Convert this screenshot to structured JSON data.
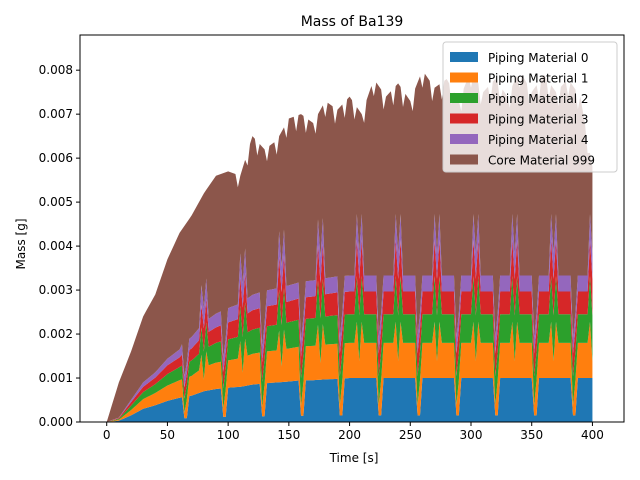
{
  "chart_data": {
    "type": "area",
    "stacked": true,
    "title": "Mass of Ba139",
    "xlabel": "Time [s]",
    "ylabel": "Mass [g]",
    "xlim": [
      -22,
      426
    ],
    "ylim": [
      0,
      0.0088
    ],
    "xticks": [
      0,
      50,
      100,
      150,
      200,
      250,
      300,
      350,
      400
    ],
    "yticks": [
      0.0,
      0.001,
      0.002,
      0.003,
      0.004,
      0.005,
      0.006,
      0.007,
      0.008
    ],
    "ytick_labels": [
      "0.000",
      "0.001",
      "0.002",
      "0.003",
      "0.004",
      "0.005",
      "0.006",
      "0.007",
      "0.008"
    ],
    "legend_position": "top-right",
    "grid": false,
    "series": [
      {
        "name": "Piping Material 0",
        "color": "#1f77b4"
      },
      {
        "name": "Piping Material 1",
        "color": "#ff7f0e"
      },
      {
        "name": "Piping Material 2",
        "color": "#2ca02c"
      },
      {
        "name": "Piping Material 3",
        "color": "#d62728"
      },
      {
        "name": "Piping Material 4",
        "color": "#9467bd"
      },
      {
        "name": "Core Material 999",
        "color": "#8c564b"
      }
    ],
    "x": [
      0,
      10,
      20,
      30,
      40,
      50,
      60,
      70,
      80,
      90,
      100,
      110,
      120,
      130,
      140,
      150,
      160,
      170,
      180,
      190,
      200,
      210,
      220,
      230,
      240,
      250,
      260,
      270,
      280,
      290,
      300,
      310,
      320,
      330,
      340,
      350,
      360,
      370,
      380,
      390,
      400
    ],
    "totals": [
      0.0,
      0.0009,
      0.0016,
      0.0024,
      0.0029,
      0.0037,
      0.0043,
      0.0047,
      0.0052,
      0.0056,
      0.0057,
      0.0056,
      0.0065,
      0.0062,
      0.0064,
      0.0069,
      0.007,
      0.0068,
      0.0073,
      0.0071,
      0.0074,
      0.007,
      0.0078,
      0.0074,
      0.0077,
      0.0073,
      0.008,
      0.0076,
      0.0078,
      0.0073,
      0.008,
      0.0075,
      0.0078,
      0.0074,
      0.008,
      0.0075,
      0.0079,
      0.0075,
      0.0078,
      0.0074,
      0.0058
    ],
    "layers_baseline": [
      [
        0,
        3e-05,
        0.00015,
        0.0003,
        0.00038,
        0.00048,
        0.00055,
        0.0006,
        0.0007,
        0.00075,
        0.00078,
        0.0008,
        0.00085,
        0.00088,
        0.0009,
        0.00092,
        0.00095,
        0.00095,
        0.00097,
        0.00098,
        0.001,
        0.001,
        0.001,
        0.001,
        0.001,
        0.001,
        0.001,
        0.001,
        0.001,
        0.001,
        0.001,
        0.001,
        0.001,
        0.001,
        0.001,
        0.001,
        0.001,
        0.001,
        0.001,
        0.001,
        0.001
      ],
      [
        0,
        2e-05,
        0.00012,
        0.00022,
        0.00028,
        0.00035,
        0.0004,
        0.00045,
        0.00055,
        0.0006,
        0.00062,
        0.00065,
        0.0007,
        0.00072,
        0.00073,
        0.00075,
        0.00077,
        0.00078,
        0.00079,
        0.0008,
        0.0008,
        0.0008,
        0.0008,
        0.0008,
        0.0008,
        0.0008,
        0.0008,
        0.0008,
        0.0008,
        0.0008,
        0.0008,
        0.0008,
        0.0008,
        0.0008,
        0.0008,
        0.0008,
        0.0008,
        0.0008,
        0.0008,
        0.0008,
        0.0008
      ],
      [
        0,
        2e-05,
        0.0001,
        0.00016,
        0.0002,
        0.00026,
        0.0003,
        0.00035,
        0.0004,
        0.00045,
        0.00048,
        0.0005,
        0.00055,
        0.00057,
        0.00058,
        0.0006,
        0.00062,
        0.00063,
        0.00064,
        0.00065,
        0.00065,
        0.00065,
        0.00065,
        0.00065,
        0.00065,
        0.00065,
        0.00065,
        0.00065,
        0.00065,
        0.00065,
        0.00065,
        0.00065,
        0.00065,
        0.00065,
        0.00065,
        0.00065,
        0.00065,
        0.00065,
        0.00065,
        0.00065,
        0.00065
      ],
      [
        0,
        2e-05,
        8e-05,
        0.00012,
        0.00015,
        0.0002,
        0.00022,
        0.00025,
        0.0003,
        0.00032,
        0.00035,
        0.00037,
        0.0004,
        0.00041,
        0.00042,
        0.00043,
        0.00044,
        0.00045,
        0.00046,
        0.00047,
        0.00047,
        0.00047,
        0.00047,
        0.00047,
        0.00047,
        0.00047,
        0.00047,
        0.00047,
        0.00047,
        0.00047,
        0.00047,
        0.00047,
        0.00047,
        0.00047,
        0.00047,
        0.00047,
        0.00047,
        0.00047,
        0.00047,
        0.00047,
        0.00047
      ],
      [
        0,
        1e-05,
        5e-05,
        0.0001,
        0.00012,
        0.00015,
        0.00018,
        0.0002,
        0.00022,
        0.00024,
        0.00025,
        0.00026,
        0.00027,
        0.00028,
        0.00028,
        0.00028,
        0.00028,
        0.00028,
        0.00028,
        0.00028,
        0.00028,
        0.00028,
        0.00028,
        0.00028,
        0.00028,
        0.00028,
        0.00028,
        0.00028,
        0.00028,
        0.00028,
        0.00028,
        0.00028,
        0.00028,
        0.00028,
        0.00028,
        0.00028,
        0.00028,
        0.00028,
        0.00028,
        0.00028,
        0.00028
      ]
    ]
  }
}
